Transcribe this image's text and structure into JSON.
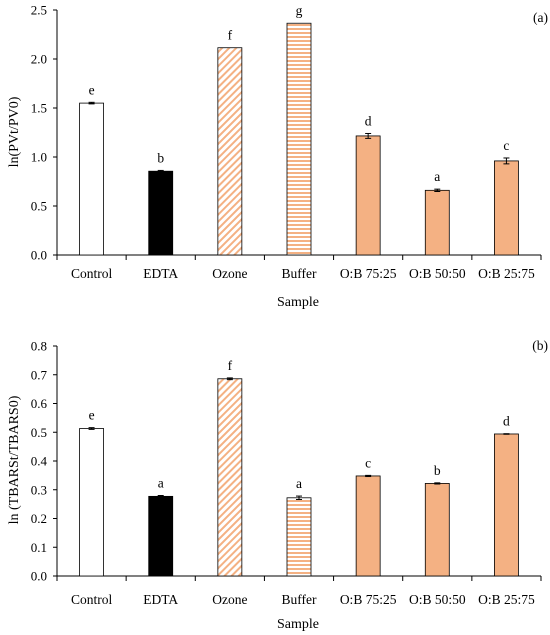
{
  "colors": {
    "white_fill": "#ffffff",
    "black_fill": "#000000",
    "ozone_stripe": "#f4b183",
    "buffer_stripe": "#f4b183",
    "blend_fill": "#f4b183",
    "outline": "#000000"
  },
  "chart_data": [
    {
      "type": "bar",
      "panel_label": "(a)",
      "categories": [
        "Control",
        "EDTA",
        "Ozone",
        "Buffer",
        "O:B 75:25",
        "O:B 50:50",
        "O:B 25:75"
      ],
      "values": [
        1.55,
        0.855,
        2.115,
        2.365,
        1.215,
        0.66,
        0.96
      ],
      "errors": [
        0.008,
        0.008,
        0.0,
        0.0,
        0.025,
        0.012,
        0.03
      ],
      "letters": [
        "e",
        "b",
        "f",
        "g",
        "d",
        "a",
        "c"
      ],
      "fills": [
        "white",
        "black",
        "diagonal-stripes",
        "horizontal-stripes",
        "solid-orange",
        "solid-orange",
        "solid-orange"
      ],
      "xlabel": "Sample",
      "ylabel": "ln(PVt/PV0)",
      "ylim": [
        0,
        2.5
      ],
      "yticks": [
        "0.0",
        "0.5",
        "1.0",
        "1.5",
        "2.0",
        "2.5"
      ],
      "grid": false,
      "legend": "none"
    },
    {
      "type": "bar",
      "panel_label": "(b)",
      "categories": [
        "Control",
        "EDTA",
        "Ozone",
        "Buffer",
        "O:B 75:25",
        "O:B 50:50",
        "O:B 25:75"
      ],
      "values": [
        0.513,
        0.277,
        0.686,
        0.272,
        0.348,
        0.322,
        0.494
      ],
      "errors": [
        0.003,
        0.003,
        0.003,
        0.006,
        0.002,
        0.002,
        0.001
      ],
      "letters": [
        "e",
        "a",
        "f",
        "a",
        "c",
        "b",
        "d"
      ],
      "fills": [
        "white",
        "black",
        "diagonal-stripes",
        "horizontal-stripes",
        "solid-orange",
        "solid-orange",
        "solid-orange"
      ],
      "xlabel": "Sample",
      "ylabel": "ln (TBARSt/TBARS0)",
      "ylim": [
        0,
        0.8
      ],
      "yticks": [
        "0.0",
        "0.1",
        "0.2",
        "0.3",
        "0.4",
        "0.5",
        "0.6",
        "0.7",
        "0.8"
      ],
      "grid": false,
      "legend": "none"
    }
  ]
}
